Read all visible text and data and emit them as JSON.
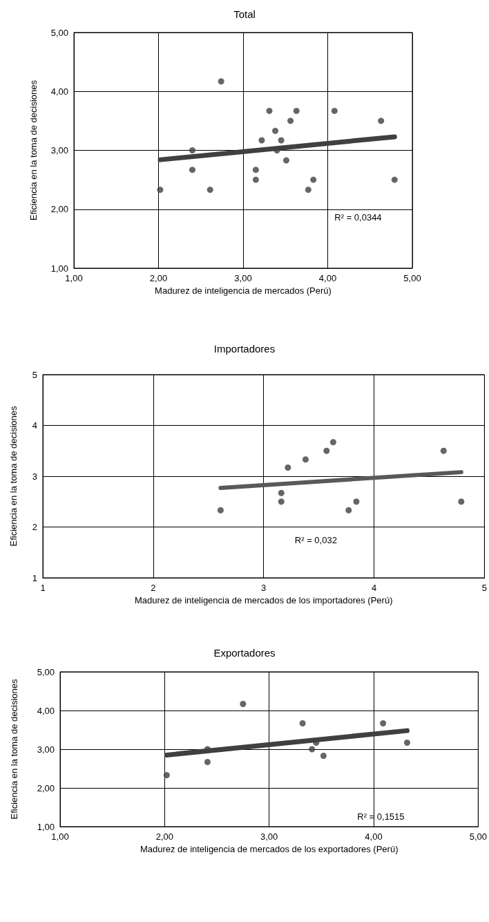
{
  "chart_data": [
    {
      "type": "scatter",
      "title": "Total",
      "xlabel": "Madurez de inteligencia de mercados (Perú)",
      "ylabel": "Eficiencia en la toma de decisiones",
      "xlim": [
        1,
        5
      ],
      "ylim": [
        1,
        5
      ],
      "xticks": [
        {
          "value": 1,
          "label": "1,00"
        },
        {
          "value": 2,
          "label": "2,00"
        },
        {
          "value": 3,
          "label": "3,00"
        },
        {
          "value": 4,
          "label": "4,00"
        },
        {
          "value": 5,
          "label": "5,00"
        }
      ],
      "yticks": [
        {
          "value": 1,
          "label": "1,00"
        },
        {
          "value": 2,
          "label": "2,00"
        },
        {
          "value": 3,
          "label": "3,00"
        },
        {
          "value": 4,
          "label": "4,00"
        },
        {
          "value": 5,
          "label": "5,00"
        }
      ],
      "grid": true,
      "annotations": [
        "R² = 0,0344"
      ],
      "series": [
        {
          "marker": "circle",
          "color": "#404040",
          "x": [
            2.02,
            2.4,
            2.4,
            2.61,
            2.74,
            3.15,
            3.15,
            3.22,
            3.31,
            3.38,
            3.4,
            3.45,
            3.51,
            3.56,
            3.63,
            3.77,
            3.83,
            4.08,
            4.63,
            4.79
          ],
          "values": [
            2.33,
            2.67,
            3.0,
            2.33,
            4.17,
            2.67,
            2.5,
            3.17,
            3.67,
            3.33,
            3.0,
            3.17,
            2.83,
            3.5,
            3.67,
            2.33,
            2.5,
            3.67,
            3.5,
            2.5
          ]
        },
        {
          "type": "line",
          "marker": "none",
          "color": "#404040",
          "x": [
            2.02,
            4.79
          ],
          "values": [
            2.84,
            3.23
          ]
        }
      ]
    },
    {
      "type": "scatter",
      "title": "Importadores",
      "xlabel": "Madurez de inteligencia de mercados de los importadores (Perú)",
      "ylabel": "Eficiencia en la toma de decisiones",
      "xlim": [
        1,
        5
      ],
      "ylim": [
        1,
        5
      ],
      "xticks": [
        1,
        2,
        3,
        4,
        5
      ],
      "yticks": [
        1,
        2,
        3,
        4,
        5
      ],
      "grid": true,
      "annotations": [
        "R² = 0,032"
      ],
      "series": [
        {
          "marker": "circle",
          "color": "#404040",
          "x": [
            2.61,
            3.16,
            3.16,
            3.22,
            3.38,
            3.57,
            3.63,
            3.77,
            3.84,
            4.63,
            4.79
          ],
          "values": [
            2.33,
            2.67,
            2.5,
            3.17,
            3.33,
            3.5,
            3.67,
            2.33,
            2.5,
            3.5,
            2.5
          ]
        },
        {
          "type": "line",
          "marker": "none",
          "color": "#595959",
          "x": [
            2.61,
            4.79
          ],
          "values": [
            2.77,
            3.08
          ]
        }
      ]
    },
    {
      "type": "scatter",
      "title": "Exportadores",
      "xlabel": "Madurez de inteligencia de mercados de los exportadores (Perú)",
      "ylabel": "Eficiencia en la toma de decisiones",
      "xlim": [
        1,
        5
      ],
      "ylim": [
        1,
        5
      ],
      "xticks": [
        {
          "value": 1,
          "label": "1,00"
        },
        {
          "value": 2,
          "label": "2,00"
        },
        {
          "value": 3,
          "label": "3,00"
        },
        {
          "value": 4,
          "label": "4,00"
        },
        {
          "value": 5,
          "label": "5,00"
        }
      ],
      "yticks": [
        {
          "value": 1,
          "label": "1,00"
        },
        {
          "value": 2,
          "label": "2,00"
        },
        {
          "value": 3,
          "label": "3,00"
        },
        {
          "value": 4,
          "label": "4,00"
        },
        {
          "value": 5,
          "label": "5,00"
        }
      ],
      "grid": true,
      "annotations": [
        "R² = 0,1515"
      ],
      "series": [
        {
          "marker": "circle",
          "color": "#404040",
          "x": [
            2.02,
            2.41,
            2.41,
            2.75,
            3.32,
            3.41,
            3.45,
            3.52,
            4.09,
            4.32
          ],
          "values": [
            2.33,
            2.67,
            3.0,
            4.17,
            3.67,
            3.0,
            3.17,
            2.83,
            3.67,
            3.17
          ]
        },
        {
          "type": "line",
          "marker": "none",
          "color": "#404040",
          "x": [
            2.02,
            4.32
          ],
          "values": [
            2.85,
            3.48
          ]
        }
      ]
    }
  ]
}
